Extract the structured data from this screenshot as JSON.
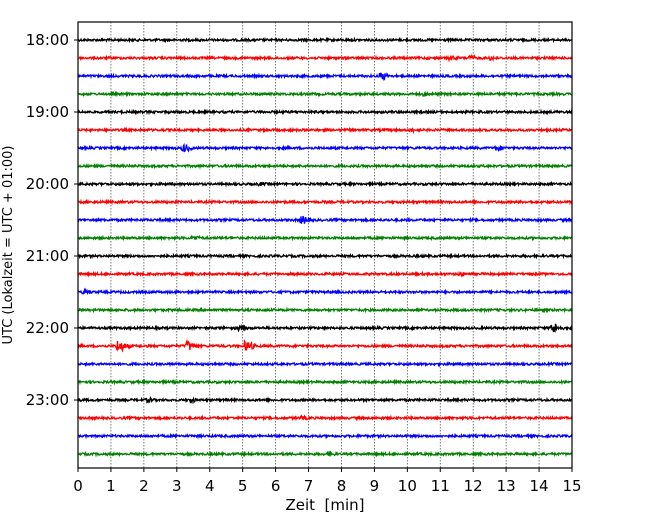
{
  "chart_data": {
    "type": "line",
    "title": "",
    "xlabel": "Zeit  [min]",
    "ylabel": "UTC (Lokalzeit = UTC + 01:00)",
    "xlim": [
      0,
      15
    ],
    "xticks": [
      "0",
      "1",
      "2",
      "3",
      "4",
      "5",
      "6",
      "7",
      "8",
      "9",
      "10",
      "11",
      "12",
      "13",
      "14",
      "15"
    ],
    "yticks": [
      {
        "label": "18:00",
        "trace": 0
      },
      {
        "label": "19:00",
        "trace": 4
      },
      {
        "label": "20:00",
        "trace": 8
      },
      {
        "label": "21:00",
        "trace": 12
      },
      {
        "label": "22:00",
        "trace": 16
      },
      {
        "label": "23:00",
        "trace": 20
      }
    ],
    "grid": "vertical dotted",
    "trace_count": 24,
    "minutes_per_trace": 15,
    "colors": [
      "#000000",
      "#ff0000",
      "#0000ff",
      "#008000"
    ],
    "events": [
      {
        "trace": 1,
        "minute": 11.4,
        "amp": 2.5
      },
      {
        "trace": 1,
        "minute": 12.0,
        "amp": 2.5
      },
      {
        "trace": 1,
        "minute": 12.6,
        "amp": 2.5
      },
      {
        "trace": 2,
        "minute": 9.3,
        "amp": 4
      },
      {
        "trace": 3,
        "minute": 10.6,
        "amp": 2
      },
      {
        "trace": 5,
        "minute": 10.2,
        "amp": 2
      },
      {
        "trace": 6,
        "minute": 3.3,
        "amp": 4
      },
      {
        "trace": 6,
        "minute": 12.8,
        "amp": 3
      },
      {
        "trace": 8,
        "minute": 5.6,
        "amp": 2
      },
      {
        "trace": 10,
        "minute": 6.9,
        "amp": 4
      },
      {
        "trace": 11,
        "minute": 3.6,
        "amp": 2.5
      },
      {
        "trace": 13,
        "minute": 11.7,
        "amp": 2
      },
      {
        "trace": 14,
        "minute": 0.3,
        "amp": 2.5
      },
      {
        "trace": 16,
        "minute": 5.0,
        "amp": 3
      },
      {
        "trace": 16,
        "minute": 14.5,
        "amp": 5
      },
      {
        "trace": 17,
        "minute": 1.3,
        "amp": 6
      },
      {
        "trace": 17,
        "minute": 3.4,
        "amp": 5
      },
      {
        "trace": 17,
        "minute": 5.2,
        "amp": 5
      },
      {
        "trace": 20,
        "minute": 2.2,
        "amp": 2.5
      },
      {
        "trace": 20,
        "minute": 3.5,
        "amp": 2.5
      },
      {
        "trace": 21,
        "minute": 6.9,
        "amp": 2
      },
      {
        "trace": 23,
        "minute": 7.7,
        "amp": 2.5
      }
    ]
  }
}
